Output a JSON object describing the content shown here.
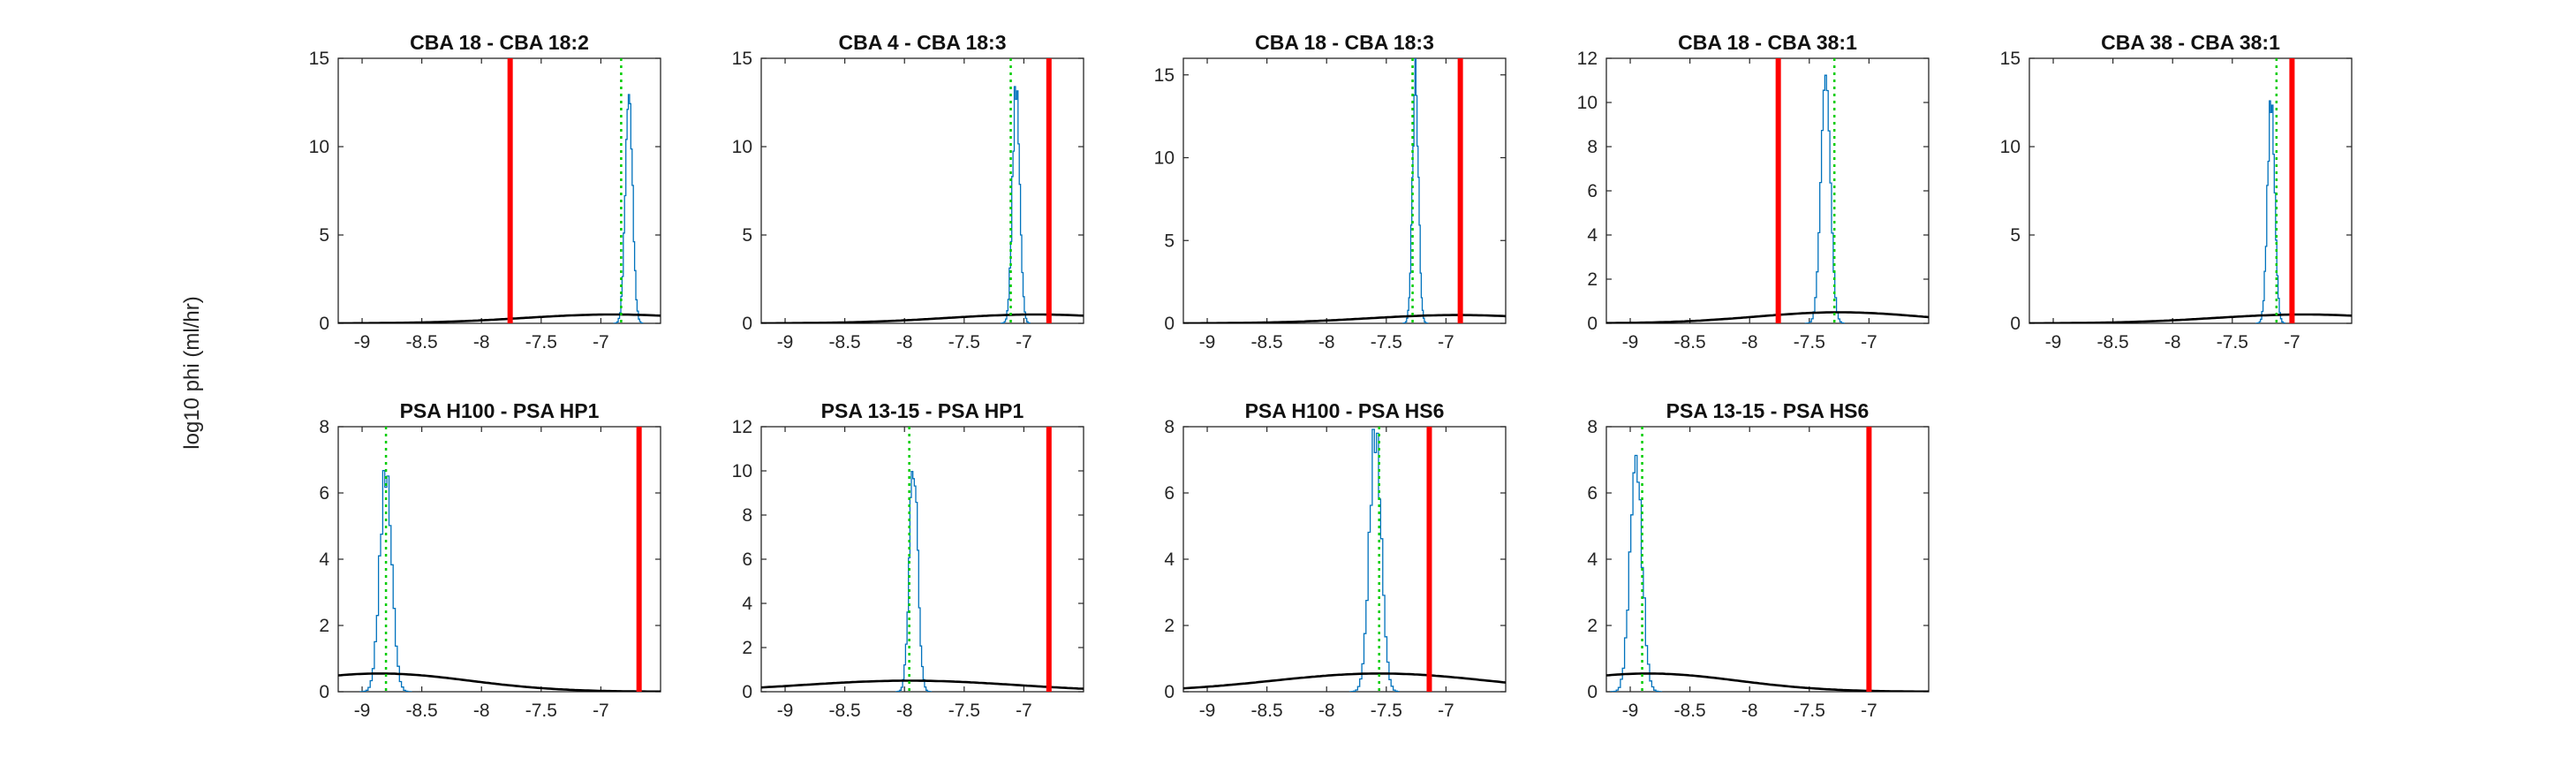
{
  "figure": {
    "ylabel": "log10 phi (ml/hr)",
    "colors": {
      "histogram": "#0072BD",
      "prior_curve": "#000000",
      "observed_line": "#ff0000",
      "mean_line": "#00cc00",
      "axes": "#262626"
    }
  },
  "chart_data": [
    {
      "type": "line",
      "title": "CBA 18 - CBA 18:2",
      "xlim": [
        -9.2,
        -6.5
      ],
      "ylim": [
        0,
        15
      ],
      "xticks": [
        -9,
        -8.5,
        -8,
        -7.5,
        -7
      ],
      "yticks": [
        0,
        5,
        10,
        15
      ],
      "observed": -7.76,
      "mean": -6.83,
      "hist_center": -6.77,
      "hist_sd": 0.03,
      "hist_peak": 13,
      "prior": {
        "mu": -6.9,
        "sigma": 0.75,
        "peak": 0.5
      }
    },
    {
      "type": "line",
      "title": "CBA 4 - CBA 18:3",
      "xlim": [
        -9.2,
        -6.5
      ],
      "ylim": [
        0,
        15
      ],
      "xticks": [
        -9,
        -8.5,
        -8,
        -7.5,
        -7
      ],
      "yticks": [
        0,
        5,
        10,
        15
      ],
      "observed": -6.79,
      "mean": -7.11,
      "hist_center": -7.07,
      "hist_sd": 0.03,
      "hist_peak": 13.4,
      "prior": {
        "mu": -6.9,
        "sigma": 0.75,
        "peak": 0.5
      }
    },
    {
      "type": "line",
      "title": "CBA 18 - CBA 18:3",
      "xlim": [
        -9.2,
        -6.5
      ],
      "ylim": [
        0,
        16
      ],
      "xticks": [
        -9,
        -8.5,
        -8,
        -7.5,
        -7
      ],
      "yticks": [
        0,
        5,
        10,
        15
      ],
      "observed": -6.88,
      "mean": -7.28,
      "hist_center": -7.26,
      "hist_sd": 0.025,
      "hist_peak": 14.8,
      "prior": {
        "mu": -6.9,
        "sigma": 0.75,
        "peak": 0.5
      }
    },
    {
      "type": "line",
      "title": "CBA 18 - CBA 38:1",
      "xlim": [
        -9.2,
        -6.5
      ],
      "ylim": [
        0,
        12
      ],
      "xticks": [
        -9,
        -8.5,
        -8,
        -7.5,
        -7
      ],
      "yticks": [
        0,
        2,
        4,
        6,
        8,
        10,
        12
      ],
      "observed": -7.76,
      "mean": -7.29,
      "hist_center": -7.37,
      "hist_sd": 0.04,
      "hist_peak": 10.4,
      "prior": {
        "mu": -7.25,
        "sigma": 0.7,
        "peak": 0.5
      }
    },
    {
      "type": "line",
      "title": "CBA 38 - CBA 38:1",
      "xlim": [
        -9.2,
        -6.5
      ],
      "ylim": [
        0,
        15
      ],
      "xticks": [
        -9,
        -8.5,
        -8,
        -7.5,
        -7
      ],
      "yticks": [
        0,
        5,
        10,
        15
      ],
      "observed": -7.0,
      "mean": -7.13,
      "hist_center": -7.18,
      "hist_sd": 0.03,
      "hist_peak": 12.6,
      "prior": {
        "mu": -6.9,
        "sigma": 0.75,
        "peak": 0.5
      }
    },
    {
      "type": "line",
      "title": "PSA H100 - PSA HP1",
      "xlim": [
        -9.2,
        -6.5
      ],
      "ylim": [
        0,
        8
      ],
      "xticks": [
        -9,
        -8.5,
        -8,
        -7.5,
        -7
      ],
      "yticks": [
        0,
        2,
        4,
        6,
        8
      ],
      "observed": -6.68,
      "mean": -8.8,
      "hist_center": -8.81,
      "hist_sd": 0.05,
      "hist_peak": 6.6,
      "prior": {
        "mu": -8.85,
        "sigma": 0.75,
        "peak": 0.55
      }
    },
    {
      "type": "line",
      "title": "PSA 13-15 - PSA HP1",
      "xlim": [
        -9.2,
        -6.5
      ],
      "ylim": [
        0,
        12
      ],
      "xticks": [
        -9,
        -8.5,
        -8,
        -7.5,
        -7
      ],
      "yticks": [
        0,
        2,
        4,
        6,
        8,
        10,
        12
      ],
      "observed": -6.79,
      "mean": -7.96,
      "hist_center": -7.93,
      "hist_sd": 0.035,
      "hist_peak": 10.4,
      "prior": {
        "mu": -7.96,
        "sigma": 0.9,
        "peak": 0.5
      }
    },
    {
      "type": "line",
      "title": "PSA H100 - PSA HS6",
      "xlim": [
        -9.2,
        -6.5
      ],
      "ylim": [
        0,
        8
      ],
      "xticks": [
        -9,
        -8.5,
        -8,
        -7.5,
        -7
      ],
      "yticks": [
        0,
        2,
        4,
        6,
        8
      ],
      "observed": -7.14,
      "mean": -7.56,
      "hist_center": -7.6,
      "hist_sd": 0.05,
      "hist_peak": 7.8,
      "prior": {
        "mu": -7.55,
        "sigma": 0.9,
        "peak": 0.55
      }
    },
    {
      "type": "line",
      "title": "PSA 13-15 - PSA HS6",
      "xlim": [
        -9.2,
        -6.5
      ],
      "ylim": [
        0,
        8
      ],
      "xticks": [
        -9,
        -8.5,
        -8,
        -7.5,
        -7
      ],
      "yticks": [
        0,
        2,
        4,
        6,
        8
      ],
      "observed": -7.0,
      "mean": -8.9,
      "hist_center": -8.96,
      "hist_sd": 0.05,
      "hist_peak": 7.0,
      "prior": {
        "mu": -8.85,
        "sigma": 0.75,
        "peak": 0.55
      }
    }
  ]
}
